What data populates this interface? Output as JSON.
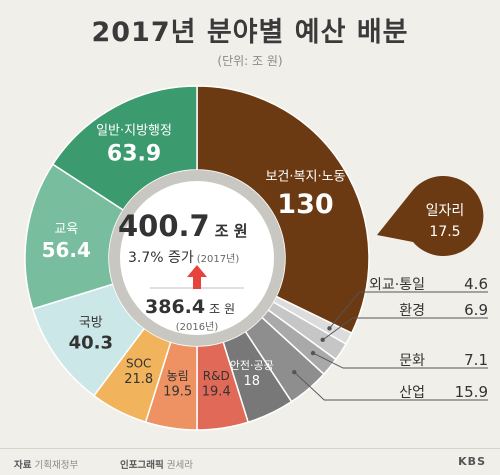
{
  "title": "2017년 분야별 예산 배분",
  "subtitle": "(단위: 조 원)",
  "center": {
    "total_value": "400.7",
    "total_unit": "조 원",
    "growth_text": "3.7% 증가",
    "growth_year": "(2017년)",
    "prev_value": "386.4",
    "prev_unit": "조 원",
    "prev_year": "(2016년)"
  },
  "chart_data": {
    "type": "pie",
    "total": 400.7,
    "previous_total": 386.4,
    "growth_percent": 3.7,
    "slices": [
      {
        "label": "보건·복지·노동",
        "value": 130,
        "value_text": "130",
        "color": "#6b3a12"
      },
      {
        "label": "외교·통일",
        "value": 4.6,
        "value_text": "4.6",
        "color": "#dcdcdc"
      },
      {
        "label": "환경",
        "value": 6.9,
        "value_text": "6.9",
        "color": "#c6c6c6"
      },
      {
        "label": "문화",
        "value": 7.1,
        "value_text": "7.1",
        "color": "#a9a9a9"
      },
      {
        "label": "산업",
        "value": 15.9,
        "value_text": "15.9",
        "color": "#8e8e8e"
      },
      {
        "label": "안전·공공",
        "value": 18,
        "value_text": "18",
        "color": "#787878"
      },
      {
        "label": "R&D",
        "value": 19.4,
        "value_text": "19.4",
        "color": "#e06a57"
      },
      {
        "label": "농림",
        "value": 19.5,
        "value_text": "19.5",
        "color": "#ee9263"
      },
      {
        "label": "SOC",
        "value": 21.8,
        "value_text": "21.8",
        "color": "#f1b35c"
      },
      {
        "label": "국방",
        "value": 40.3,
        "value_text": "40.3",
        "color": "#cbe7e7"
      },
      {
        "label": "교육",
        "value": 56.4,
        "value_text": "56.4",
        "color": "#77bd9e"
      },
      {
        "label": "일반·지방행정",
        "value": 63.9,
        "value_text": "63.9",
        "color": "#3c9a6f"
      }
    ],
    "callout": {
      "label": "일자리",
      "value": 17.5,
      "value_text": "17.5",
      "color": "#6b3a12"
    }
  },
  "footer": {
    "source_label": "자료",
    "source": "기획재정부",
    "credit_label": "인포그래픽",
    "credit": "권세라",
    "brand": "KBS"
  }
}
